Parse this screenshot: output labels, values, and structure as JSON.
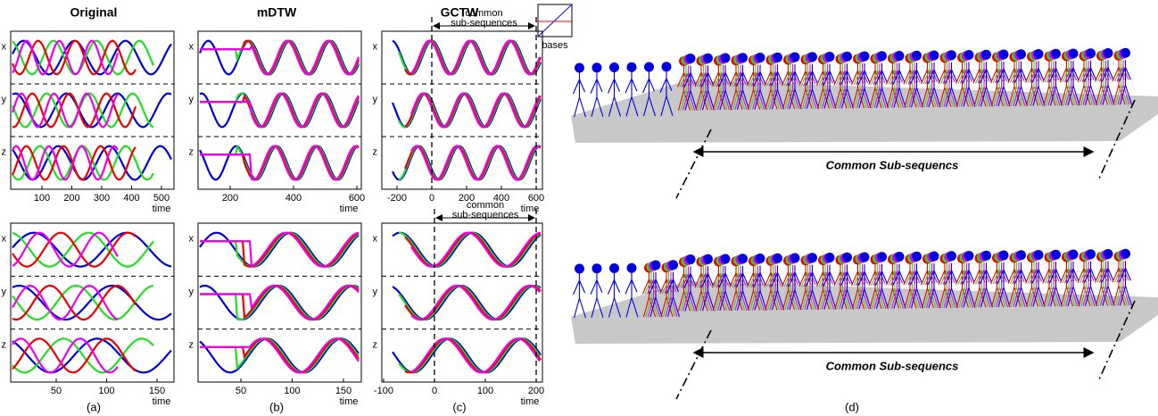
{
  "panels": [
    {
      "title": "Original",
      "caption": "(a)",
      "plots": [
        {
          "row_labels": [
            "x",
            "y",
            "z"
          ],
          "xticks": [
            100,
            200,
            300,
            400,
            500
          ],
          "xlabel": "time"
        },
        {
          "row_labels": [
            "x",
            "y",
            "z"
          ],
          "xticks": [
            50,
            100,
            150
          ],
          "xlabel": "time"
        }
      ]
    },
    {
      "title": "mDTW",
      "caption": "(b)",
      "plots": [
        {
          "row_labels": [
            "x",
            "y",
            "z"
          ],
          "xticks": [
            200,
            400,
            600
          ],
          "xlabel": "time"
        },
        {
          "row_labels": [
            "x",
            "y",
            "z"
          ],
          "xticks": [
            50,
            100,
            150
          ],
          "xlabel": "time"
        }
      ]
    },
    {
      "title": "GCTW",
      "caption": "(c)",
      "plots": [
        {
          "row_labels": [
            "x",
            "y",
            "z"
          ],
          "xticks": [
            -200,
            0,
            200,
            400,
            600
          ],
          "xlabel": "time",
          "annotation": [
            "common",
            "sub-sequences"
          ]
        },
        {
          "row_labels": [
            "x",
            "y",
            "z"
          ],
          "xticks": [
            -100,
            0,
            100,
            200
          ],
          "xlabel": "time",
          "annotation": [
            "common",
            "sub-sequences"
          ]
        }
      ]
    }
  ],
  "bases_label": "bases",
  "panel_d": {
    "labels": [
      "Common Sub-sequencs",
      "Common Sub-sequencs"
    ],
    "caption": "(d)"
  }
}
